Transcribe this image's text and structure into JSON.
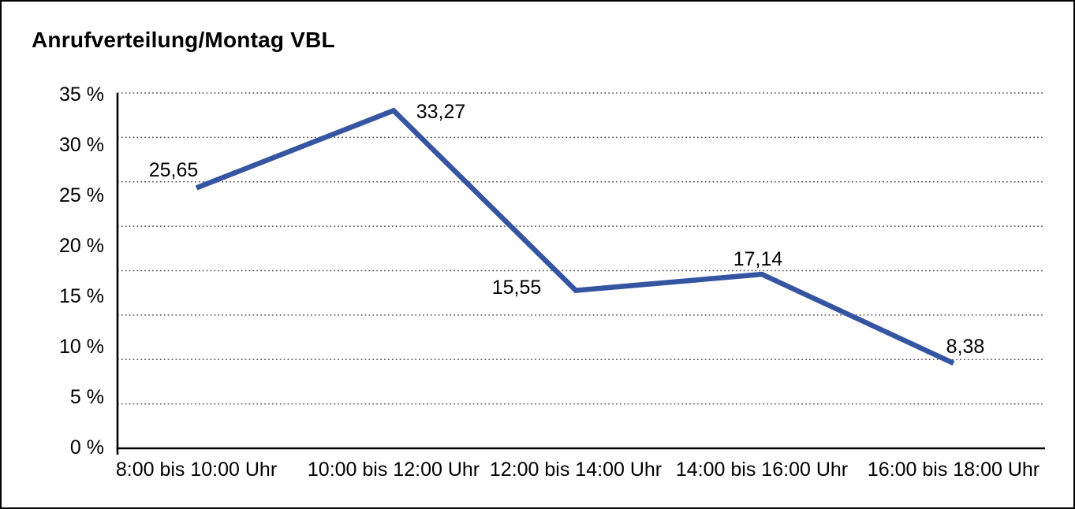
{
  "chart_data": {
    "type": "line",
    "title": "Anrufverteilung/Montag VBL",
    "categories": [
      "8:00 bis 10:00 Uhr",
      "10:00 bis 12:00 Uhr",
      "12:00 bis 14:00 Uhr",
      "14:00 bis 16:00 Uhr",
      "16:00 bis 18:00 Uhr"
    ],
    "values": [
      25.65,
      33.27,
      15.55,
      17.14,
      8.38
    ],
    "value_labels": [
      "25,65",
      "33,27",
      "15,55",
      "17,14",
      "8,38"
    ],
    "y_tick_labels": [
      "35 %",
      "30 %",
      "25 %",
      "20 %",
      "15 %",
      "10 %",
      "5 %",
      "0 %"
    ],
    "ylim": [
      0,
      35
    ],
    "y_tick_step_percent": 5,
    "xlabel": "",
    "ylabel": "",
    "legend": "none",
    "grid": {
      "horizontal": "on",
      "vertical": "off",
      "style": "dotted",
      "dotted_line_count": 8
    },
    "colors": {
      "line": "#3555A2",
      "axis": "#000000",
      "grid": "#4d4d4d",
      "text": "#000000",
      "background": "#ffffff",
      "border": "#000000"
    }
  }
}
